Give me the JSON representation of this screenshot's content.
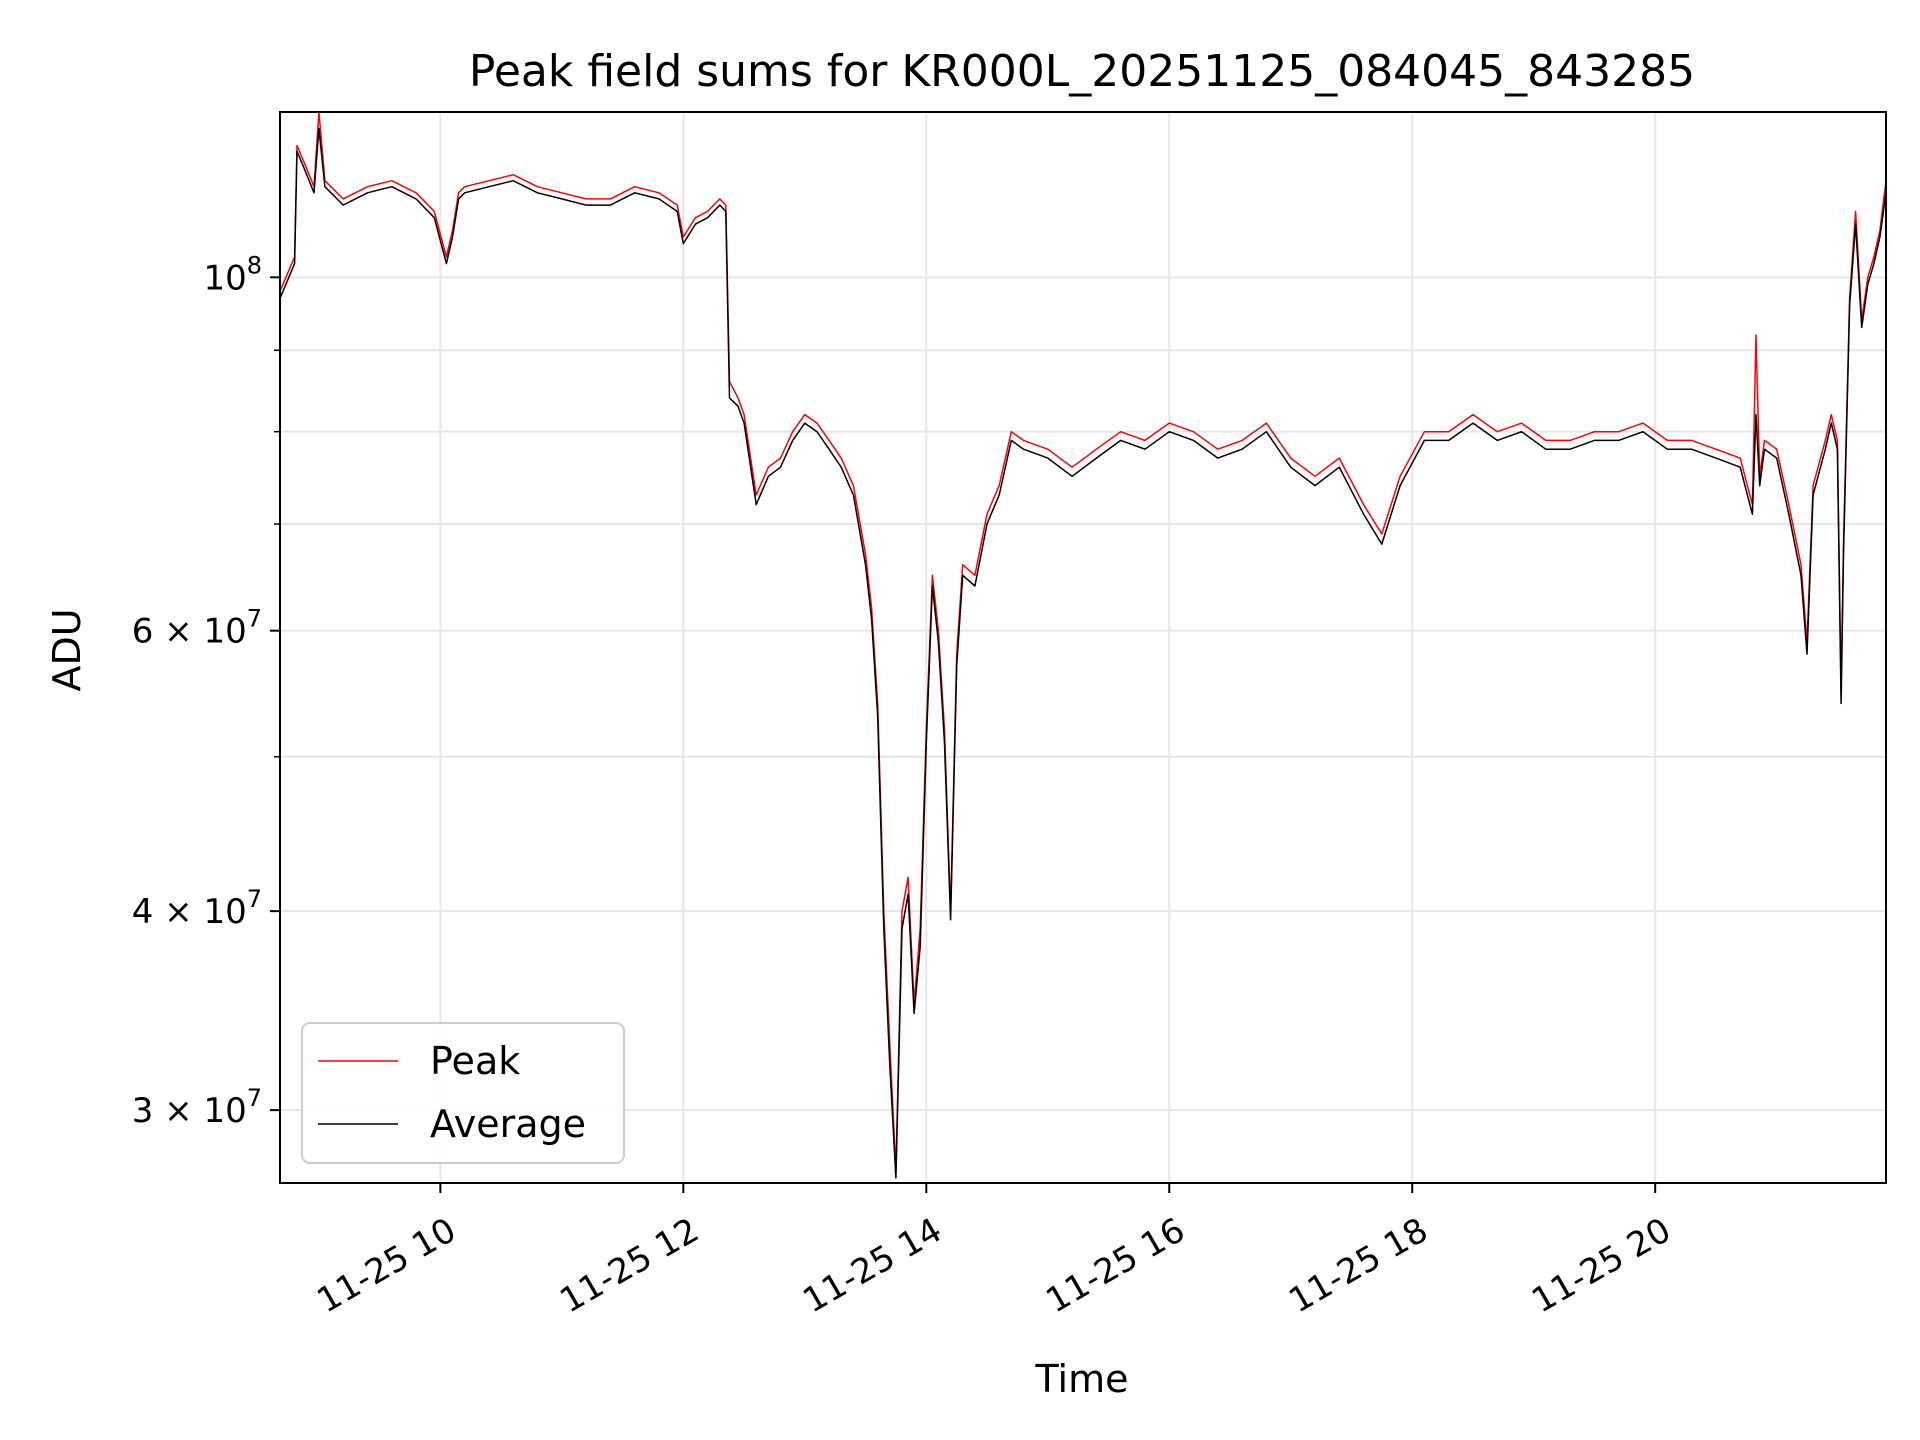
{
  "chart_data": {
    "type": "line",
    "title": "Peak field sums for KR000L_20251125_084045_843285",
    "xlabel": "Time",
    "ylabel": "ADU",
    "yscale": "log",
    "xlim_hours": [
      8.68,
      21.9
    ],
    "ylim": [
      27000000,
      127000000
    ],
    "grid": true,
    "legend_position": "lower-left",
    "x_ticks": [
      {
        "hour": 10,
        "label": "11-25 10"
      },
      {
        "hour": 12,
        "label": "11-25 12"
      },
      {
        "hour": 14,
        "label": "11-25 14"
      },
      {
        "hour": 16,
        "label": "11-25 16"
      },
      {
        "hour": 18,
        "label": "11-25 18"
      },
      {
        "hour": 20,
        "label": "11-25 20"
      }
    ],
    "y_major_ticks": [
      {
        "value": 100000000,
        "base": "10",
        "exp": "8"
      },
      {
        "value": 60000000,
        "base": "6 × 10",
        "exp": "7"
      },
      {
        "value": 40000000,
        "base": "4 × 10",
        "exp": "7"
      },
      {
        "value": 30000000,
        "base": "3 × 10",
        "exp": "7"
      }
    ],
    "y_minor_ticks": [
      50000000,
      70000000,
      80000000,
      90000000
    ],
    "series": [
      {
        "name": "Peak",
        "color": "#ff0000",
        "line_width": 1.5
      },
      {
        "name": "Average",
        "color": "#000000",
        "line_width": 1.5
      }
    ],
    "x": [
      8.68,
      8.8,
      8.82,
      8.88,
      8.96,
      9.0,
      9.05,
      9.2,
      9.4,
      9.6,
      9.8,
      9.95,
      10.05,
      10.1,
      10.15,
      10.2,
      10.4,
      10.6,
      10.8,
      11.0,
      11.2,
      11.4,
      11.6,
      11.8,
      11.95,
      12.0,
      12.1,
      12.2,
      12.3,
      12.35,
      12.38,
      12.45,
      12.5,
      12.6,
      12.7,
      12.8,
      12.9,
      13.0,
      13.1,
      13.2,
      13.3,
      13.4,
      13.5,
      13.55,
      13.6,
      13.65,
      13.7,
      13.75,
      13.8,
      13.85,
      13.9,
      13.95,
      14.0,
      14.05,
      14.1,
      14.15,
      14.2,
      14.25,
      14.3,
      14.4,
      14.5,
      14.6,
      14.7,
      14.8,
      15.0,
      15.2,
      15.4,
      15.6,
      15.8,
      16.0,
      16.2,
      16.4,
      16.6,
      16.8,
      17.0,
      17.2,
      17.4,
      17.6,
      17.75,
      17.9,
      18.1,
      18.3,
      18.5,
      18.7,
      18.9,
      19.1,
      19.3,
      19.5,
      19.7,
      19.9,
      20.1,
      20.3,
      20.5,
      20.7,
      20.8,
      20.83,
      20.86,
      20.9,
      21.0,
      21.1,
      21.2,
      21.25,
      21.3,
      21.4,
      21.45,
      21.5,
      21.53,
      21.55,
      21.6,
      21.65,
      21.7,
      21.75,
      21.8,
      21.85,
      21.9
    ],
    "series_values": {
      "Peak": [
        98000000,
        103000000,
        121000000,
        118000000,
        114000000,
        127000000,
        115000000,
        112000000,
        114000000,
        115000000,
        113000000,
        110000000,
        103000000,
        107000000,
        113000000,
        114000000,
        115000000,
        116000000,
        114000000,
        113000000,
        112000000,
        112000000,
        114000000,
        113000000,
        111000000,
        106000000,
        109000000,
        110000000,
        112000000,
        111000000,
        86000000,
        84000000,
        82000000,
        73000000,
        76000000,
        77000000,
        80000000,
        82000000,
        81000000,
        79000000,
        77000000,
        74000000,
        67000000,
        62000000,
        54000000,
        40000000,
        33000000,
        27500000,
        40000000,
        42000000,
        35000000,
        39000000,
        52000000,
        65000000,
        60000000,
        52000000,
        40000000,
        58000000,
        66000000,
        65000000,
        71000000,
        74000000,
        80000000,
        79000000,
        78000000,
        76000000,
        78000000,
        80000000,
        79000000,
        81000000,
        80000000,
        78000000,
        79000000,
        81000000,
        77000000,
        75000000,
        77000000,
        72000000,
        69000000,
        75000000,
        80000000,
        80000000,
        82000000,
        80000000,
        81000000,
        79000000,
        79000000,
        80000000,
        80000000,
        81000000,
        79000000,
        79000000,
        78000000,
        77000000,
        72000000,
        92000000,
        75000000,
        79000000,
        78000000,
        72000000,
        66000000,
        59000000,
        74000000,
        79000000,
        82000000,
        79000000,
        55000000,
        68000000,
        97000000,
        110000000,
        94000000,
        100000000,
        103000000,
        107000000,
        115000000
      ],
      "Average": [
        97000000,
        102000000,
        120000000,
        117000000,
        113000000,
        124000000,
        114000000,
        111000000,
        113000000,
        114000000,
        112000000,
        109000000,
        102000000,
        106000000,
        112000000,
        113000000,
        114000000,
        115000000,
        113000000,
        112000000,
        111000000,
        111000000,
        113000000,
        112000000,
        110000000,
        105000000,
        108000000,
        109000000,
        111000000,
        110000000,
        84000000,
        83000000,
        81000000,
        72000000,
        75000000,
        76000000,
        79000000,
        81000000,
        80000000,
        78000000,
        76000000,
        73000000,
        66000000,
        61000000,
        53000000,
        39000000,
        32000000,
        27200000,
        39000000,
        41000000,
        34500000,
        38000000,
        51000000,
        64000000,
        59000000,
        51000000,
        39500000,
        57000000,
        65000000,
        64000000,
        70000000,
        73000000,
        79000000,
        78000000,
        77000000,
        75000000,
        77000000,
        79000000,
        78000000,
        80000000,
        79000000,
        77000000,
        78000000,
        80000000,
        76000000,
        74000000,
        76000000,
        71000000,
        68000000,
        74000000,
        79000000,
        79000000,
        81000000,
        79000000,
        80000000,
        78000000,
        78000000,
        79000000,
        79000000,
        80000000,
        78000000,
        78000000,
        77000000,
        76000000,
        71000000,
        82000000,
        74000000,
        78000000,
        77000000,
        71000000,
        65000000,
        58000000,
        73000000,
        78000000,
        81000000,
        78000000,
        54000000,
        67000000,
        96000000,
        108000000,
        93000000,
        99000000,
        102000000,
        106000000,
        113000000
      ]
    }
  }
}
